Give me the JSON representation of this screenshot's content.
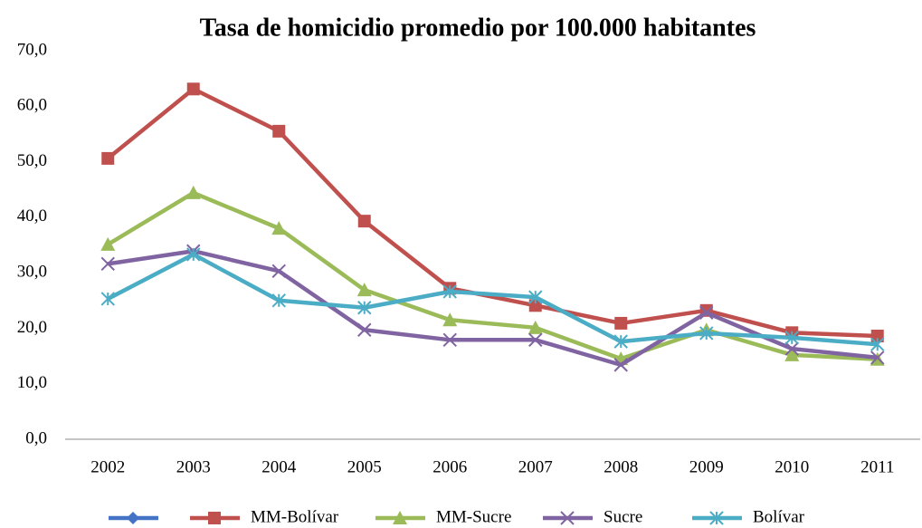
{
  "chart_data": {
    "type": "line",
    "title": "Tasa de homicidio promedio por 100.000 habitantes",
    "categories": [
      "2002",
      "2003",
      "2004",
      "2005",
      "2006",
      "2007",
      "2008",
      "2009",
      "2010",
      "2011"
    ],
    "ylim": [
      0,
      70
    ],
    "yticks": [
      {
        "value": 0,
        "label": "0,0"
      },
      {
        "value": 10,
        "label": "10,0"
      },
      {
        "value": 20,
        "label": "20,0"
      },
      {
        "value": 30,
        "label": "30,0"
      },
      {
        "value": 40,
        "label": "40,0"
      },
      {
        "value": 50,
        "label": "50,0"
      },
      {
        "value": 60,
        "label": "60,0"
      },
      {
        "value": 70,
        "label": "70,0"
      }
    ],
    "grid": false,
    "legend": "bottom",
    "series": [
      {
        "name": null,
        "color": "#4472c4",
        "marker": "diamond",
        "values": [
          null,
          null,
          null,
          null,
          null,
          null,
          null,
          null,
          null,
          null
        ]
      },
      {
        "name": "MM-Bolívar",
        "color": "#c0504d",
        "marker": "square",
        "values": [
          50.6,
          63.1,
          55.5,
          39.3,
          27.2,
          24.1,
          20.9,
          23.2,
          19.2,
          18.6
        ]
      },
      {
        "name": "MM-Sucre",
        "color": "#9bbb59",
        "marker": "triangle",
        "values": [
          35.1,
          44.4,
          38.0,
          26.9,
          21.5,
          20.1,
          14.5,
          19.7,
          15.2,
          14.4
        ]
      },
      {
        "name": "Sucre",
        "color": "#8064a2",
        "marker": "x",
        "values": [
          31.6,
          33.9,
          30.3,
          19.7,
          17.9,
          17.9,
          13.4,
          22.8,
          16.3,
          14.7
        ]
      },
      {
        "name": "Bolívar",
        "color": "#4bacc6",
        "marker": "star",
        "values": [
          25.3,
          33.3,
          25.0,
          23.7,
          26.6,
          25.6,
          17.6,
          19.1,
          18.3,
          17.1
        ]
      }
    ]
  }
}
